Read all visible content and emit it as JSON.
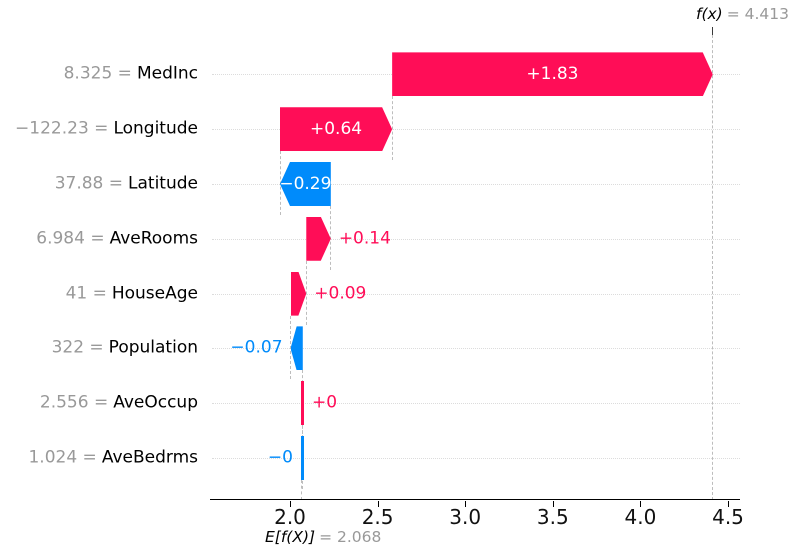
{
  "chart_data": {
    "type": "waterfall",
    "description": "SHAP waterfall plot of feature contributions for a single prediction",
    "model_output": {
      "label": "f(x)",
      "eq_text": "= 4.413",
      "value": 4.413
    },
    "expected_value": {
      "label": "E[f(X)]",
      "eq_text": "= 2.068",
      "value": 2.068
    },
    "x_axis": {
      "tick_labels": [
        "2.0",
        "2.5",
        "3.0",
        "3.5",
        "4.0",
        "4.5"
      ],
      "tick_values": [
        2.0,
        2.5,
        3.0,
        3.5,
        4.0,
        4.5
      ],
      "grid": "dotted-row-lines"
    },
    "legend_position": "none",
    "features": [
      {
        "name": "MedInc",
        "value_eq": "8.325 =",
        "shap": 1.83,
        "label": "+1.83",
        "sign": "positive",
        "label_inside": true,
        "thin": false
      },
      {
        "name": "Longitude",
        "value_eq": "−122.23 =",
        "shap": 0.64,
        "label": "+0.64",
        "sign": "positive",
        "label_inside": true,
        "thin": false
      },
      {
        "name": "Latitude",
        "value_eq": "37.88 =",
        "shap": -0.29,
        "label": "−0.29",
        "sign": "negative",
        "label_inside": true,
        "thin": false
      },
      {
        "name": "AveRooms",
        "value_eq": "6.984 =",
        "shap": 0.14,
        "label": "+0.14",
        "sign": "positive",
        "label_inside": false,
        "thin": false
      },
      {
        "name": "HouseAge",
        "value_eq": "41 =",
        "shap": 0.09,
        "label": "+0.09",
        "sign": "positive",
        "label_inside": false,
        "thin": false
      },
      {
        "name": "Population",
        "value_eq": "322 =",
        "shap": -0.07,
        "label": "−0.07",
        "sign": "negative",
        "label_inside": false,
        "thin": false
      },
      {
        "name": "AveOccup",
        "value_eq": "2.556 =",
        "shap": 0.003,
        "label": "+0",
        "sign": "positive",
        "label_inside": false,
        "thin": true
      },
      {
        "name": "AveBedrms",
        "value_eq": "1.024 =",
        "shap": -0.002,
        "label": "−0",
        "sign": "negative",
        "label_inside": false,
        "thin": true
      }
    ],
    "colors": {
      "positive": "#ff0d57",
      "negative": "#008bfb",
      "muted_text": "#999999",
      "text": "#000000",
      "tick_text": "#111111",
      "grid_dotted": "#dcdcdc",
      "connector": "#bdbdbd",
      "axis": "#000000"
    }
  }
}
